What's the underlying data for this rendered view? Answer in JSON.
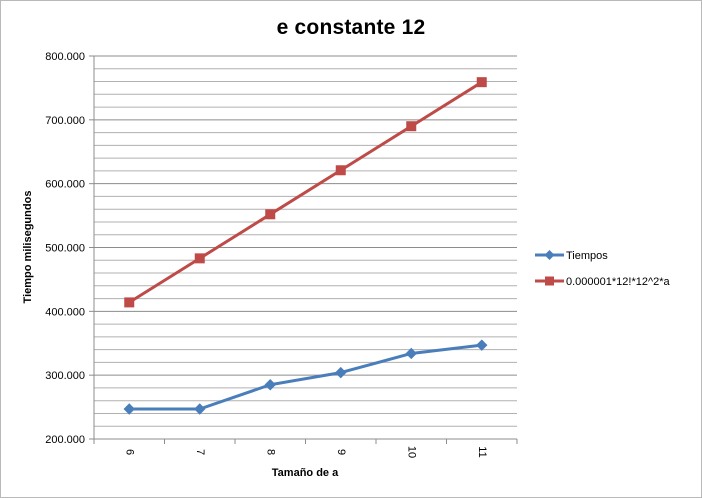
{
  "chart_data": {
    "type": "line",
    "title": "e constante 12",
    "xlabel": "Tamaño de a",
    "ylabel": "Tiempo milisegundos",
    "categories": [
      "6",
      "7",
      "8",
      "9",
      "10",
      "11"
    ],
    "y_tick_labels": [
      "200.000",
      "300.000",
      "400.000",
      "500.000",
      "600.000",
      "700.000",
      "800.000"
    ],
    "ylim": [
      200000,
      800000
    ],
    "grid": true,
    "legend_position": "right",
    "series": [
      {
        "name": "Tiempos",
        "color": "#4a7ebb",
        "marker": "diamond",
        "values": [
          247000,
          247000,
          285000,
          304000,
          334000,
          347000
        ]
      },
      {
        "name": "0.000001*12!*12^2*a",
        "color": "#be4b48",
        "marker": "square",
        "values": [
          414000,
          483000,
          552000,
          621000,
          690000,
          759000
        ]
      }
    ]
  }
}
